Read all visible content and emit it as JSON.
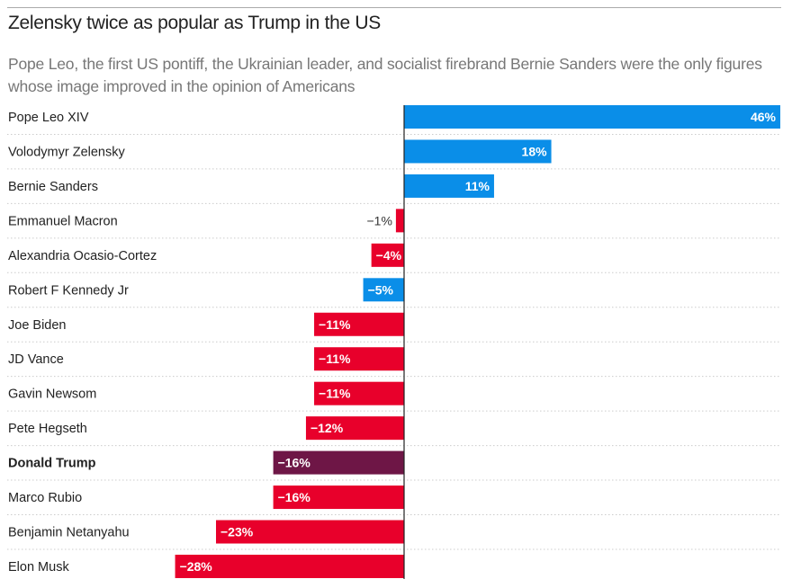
{
  "chart_data": {
    "type": "bar",
    "orientation": "horizontal",
    "title": "Zelensky twice as popular as Trump in the US",
    "subtitle": "Pope Leo, the first US pontiff, the Ukrainian leader, and socialist firebrand Bernie Sanders were the only figures whose image improved in the opinion of Americans",
    "unit": "%",
    "categories": [
      "Pope Leo XIV",
      "Volodymyr Zelensky",
      "Bernie Sanders",
      "Emmanuel Macron",
      "Alexandria Ocasio-Cortez",
      "Robert F Kennedy Jr",
      "Joe Biden",
      "JD Vance",
      "Gavin Newsom",
      "Pete Hegseth",
      "Donald Trump",
      "Marco Rubio",
      "Benjamin Netanyahu",
      "Elon Musk"
    ],
    "values": [
      46,
      18,
      11,
      -1,
      -4,
      -5,
      -11,
      -11,
      -11,
      -12,
      -16,
      -16,
      -23,
      -28
    ],
    "labels": [
      "46%",
      "18%",
      "11%",
      "−1%",
      "−4%",
      "−5%",
      "−11%",
      "−11%",
      "−11%",
      "−12%",
      "−16%",
      "−16%",
      "−23%",
      "−28%"
    ],
    "bar_colors": [
      "#0a8ee8",
      "#0a8ee8",
      "#0a8ee8",
      "#e8002b",
      "#e8002b",
      "#0a8ee8",
      "#e8002b",
      "#e8002b",
      "#e8002b",
      "#e8002b",
      "#6e1646",
      "#e8002b",
      "#e8002b",
      "#e8002b"
    ],
    "highlighted": "Donald Trump",
    "xlim": [
      -28,
      46
    ],
    "grid": false
  }
}
